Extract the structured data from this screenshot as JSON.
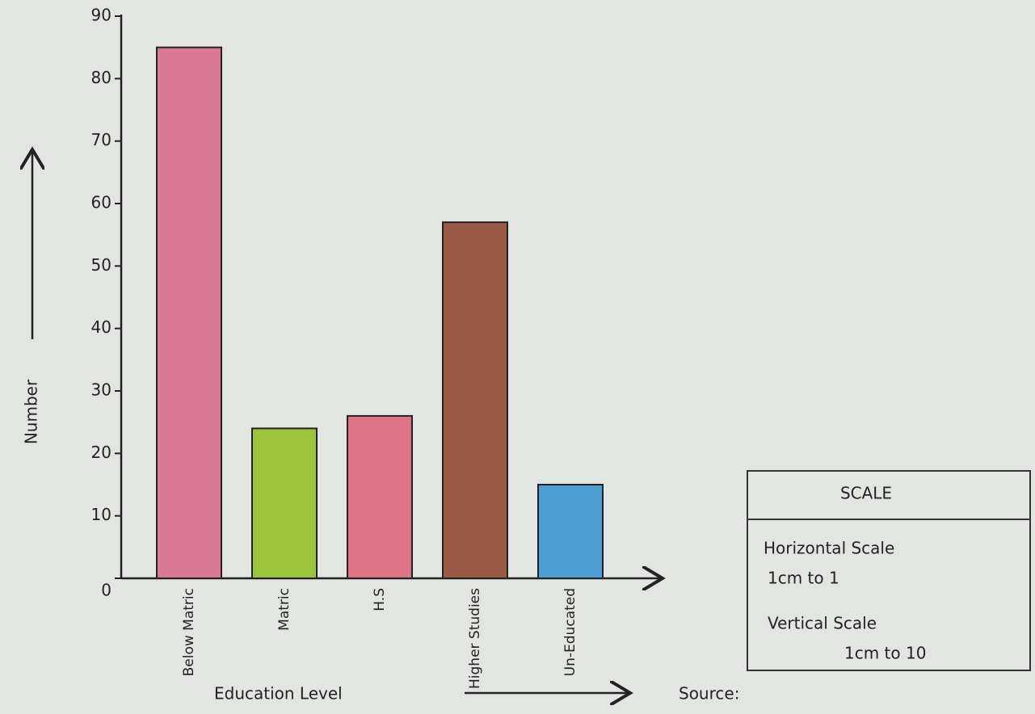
{
  "chart_data": {
    "type": "bar",
    "categories": [
      "Below Matric",
      "Matric",
      "H.S",
      "Higher Studies",
      "Un-Educated"
    ],
    "values": [
      85,
      24,
      26,
      57,
      15
    ],
    "colors": [
      "#d97a95",
      "#9cc43c",
      "#dc7486",
      "#9a5a45",
      "#4d9fd3"
    ],
    "ylim": [
      0,
      90
    ],
    "yticks": [
      0,
      10,
      20,
      30,
      40,
      50,
      60,
      70,
      80,
      90
    ],
    "y_label": "Number",
    "x_label": "Education Level",
    "source": "Source:",
    "scale_box": {
      "title": "SCALE",
      "lines": [
        "Horizontal Scale",
        "1cm to 1",
        "Vertical Scale",
        "1cm to 10"
      ]
    }
  }
}
